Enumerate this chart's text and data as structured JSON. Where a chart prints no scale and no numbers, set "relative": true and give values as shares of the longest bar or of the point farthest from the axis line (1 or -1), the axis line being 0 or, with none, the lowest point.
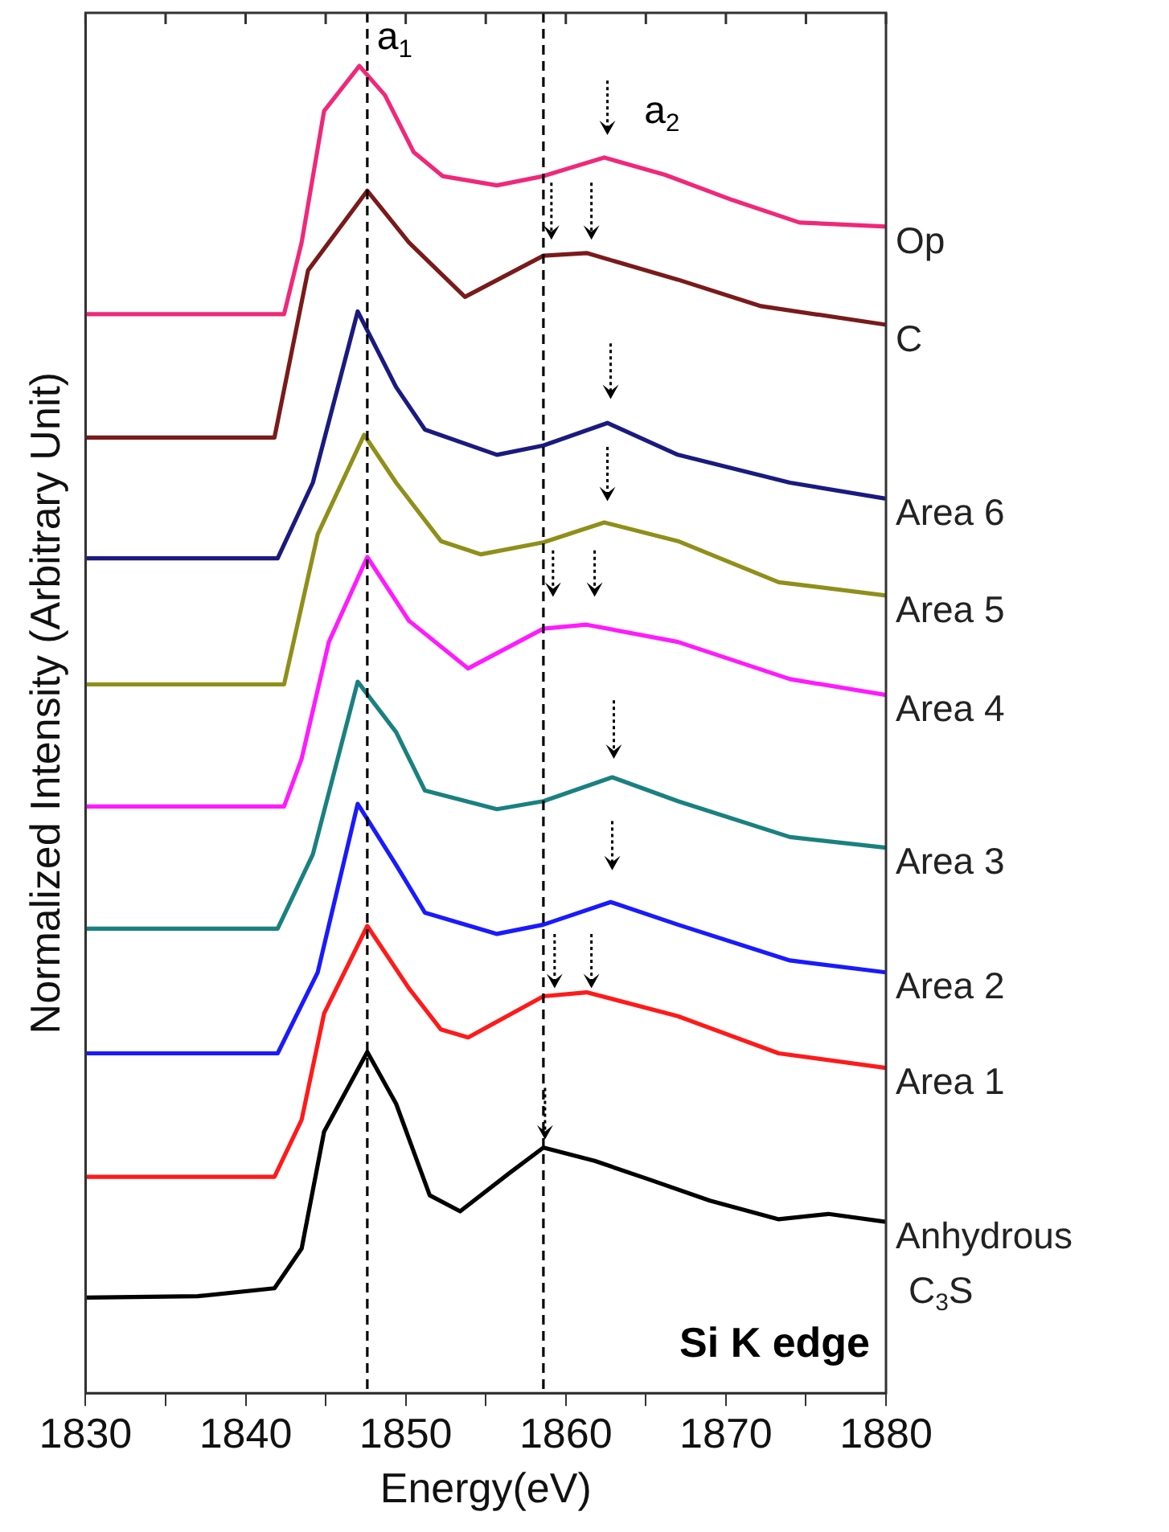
{
  "chart_data": {
    "type": "line",
    "relative": true,
    "xlabel": "Energy(eV)",
    "ylabel": "Normalized Intensity (Arbitrary Unit)",
    "xlim": [
      1830,
      1880
    ],
    "xticks": [
      1830,
      {
        "value": 1835,
        "label": null
      },
      1840,
      {
        "value": 1845,
        "label": null
      },
      1850,
      {
        "value": 1855,
        "label": null
      },
      1860,
      {
        "value": 1865,
        "label": null
      },
      1870,
      {
        "value": 1875,
        "label": null
      },
      1880
    ],
    "marker": "none",
    "grid": false,
    "legend": false,
    "ref_lines": [
      {
        "axis": "x",
        "value": 1847.6,
        "label": "a$_{1}$",
        "line_style": "dashed",
        "color": "#000000"
      },
      {
        "axis": "x",
        "value": 1858.6,
        "label": null,
        "line_style": "dashed",
        "color": "#000000"
      }
    ],
    "annotations": [
      "a$_{2}$",
      "Si K edge"
    ],
    "series": [
      {
        "name": "Op",
        "color": "#f0287a",
        "x": [
          1830,
          1842.4,
          1843.5,
          1844.9,
          1847.1,
          1848.7,
          1850.5,
          1852.3,
          1855.7,
          1858.6,
          1862.4,
          1866.2,
          1870.4,
          1874.6,
          1880
        ],
        "values": [
          0.813,
          0.813,
          0.867,
          0.966,
          1.0,
          0.978,
          0.935,
          0.917,
          0.91,
          0.917,
          0.931,
          0.918,
          0.899,
          0.882,
          0.879
        ]
      },
      {
        "name": "C",
        "color": "#7a1a1a",
        "x": [
          1830,
          1841.8,
          1843.9,
          1847.6,
          1850.2,
          1853.7,
          1858.6,
          1861.3,
          1867,
          1872.2,
          1880
        ],
        "values": [
          0.72,
          0.72,
          0.846,
          0.906,
          0.867,
          0.826,
          0.857,
          0.859,
          0.839,
          0.819,
          0.805
        ]
      },
      {
        "name": "Area 6",
        "color": "#1a1a80",
        "x": [
          1830,
          1842,
          1844.2,
          1847,
          1849.4,
          1851.2,
          1855.7,
          1858.6,
          1862.6,
          1867,
          1874,
          1880
        ],
        "values": [
          0.629,
          0.629,
          0.686,
          0.815,
          0.758,
          0.726,
          0.707,
          0.714,
          0.731,
          0.707,
          0.686,
          0.674
        ]
      },
      {
        "name": "Area 5",
        "color": "#8f8f1a",
        "x": [
          1830,
          1842.4,
          1844.5,
          1847.4,
          1849.4,
          1852.2,
          1854.7,
          1858.6,
          1862.4,
          1867,
          1873.3,
          1880
        ],
        "values": [
          0.534,
          0.534,
          0.647,
          0.722,
          0.686,
          0.642,
          0.632,
          0.641,
          0.656,
          0.642,
          0.611,
          0.601
        ]
      },
      {
        "name": "Area 4",
        "color": "#ff1aff",
        "x": [
          1830,
          1842.4,
          1843.5,
          1845.2,
          1847.6,
          1850.2,
          1853.9,
          1858.6,
          1861.3,
          1867,
          1874,
          1880
        ],
        "values": [
          0.442,
          0.442,
          0.478,
          0.566,
          0.63,
          0.582,
          0.546,
          0.576,
          0.579,
          0.566,
          0.538,
          0.526
        ]
      },
      {
        "name": "Area 3",
        "color": "#1a8080",
        "x": [
          1830,
          1842,
          1844.2,
          1847,
          1849.4,
          1851.2,
          1855.7,
          1858.6,
          1862.9,
          1867,
          1874,
          1880
        ],
        "values": [
          0.35,
          0.35,
          0.406,
          0.536,
          0.498,
          0.454,
          0.44,
          0.446,
          0.464,
          0.446,
          0.419,
          0.411
        ]
      },
      {
        "name": "Area 2",
        "color": "#1a1aff",
        "x": [
          1830,
          1842,
          1844.5,
          1847,
          1849.4,
          1851.2,
          1855.7,
          1858.6,
          1862.8,
          1867,
          1874,
          1880
        ],
        "values": [
          0.256,
          0.256,
          0.317,
          0.444,
          0.398,
          0.362,
          0.346,
          0.353,
          0.37,
          0.353,
          0.326,
          0.317
        ]
      },
      {
        "name": "Area 1",
        "color": "#ff1a1a",
        "x": [
          1830,
          1841.8,
          1843.5,
          1844.9,
          1847.6,
          1850.2,
          1852.2,
          1853.9,
          1858.6,
          1861.3,
          1867,
          1873.3,
          1880
        ],
        "values": [
          0.163,
          0.163,
          0.206,
          0.286,
          0.352,
          0.305,
          0.274,
          0.268,
          0.299,
          0.302,
          0.284,
          0.256,
          0.245
        ]
      },
      {
        "name": "Anhydrous C$_{3}$S",
        "color": "#000000",
        "x": [
          1830,
          1837,
          1841.8,
          1843.5,
          1844.9,
          1847.6,
          1849.4,
          1851.5,
          1853.4,
          1856.5,
          1858.6,
          1861.8,
          1865.2,
          1869,
          1873.3,
          1876.4,
          1880
        ],
        "values": [
          0.072,
          0.073,
          0.079,
          0.109,
          0.197,
          0.257,
          0.218,
          0.149,
          0.137,
          0.166,
          0.185,
          0.175,
          0.161,
          0.145,
          0.131,
          0.135,
          0.129
        ]
      }
    ]
  }
}
